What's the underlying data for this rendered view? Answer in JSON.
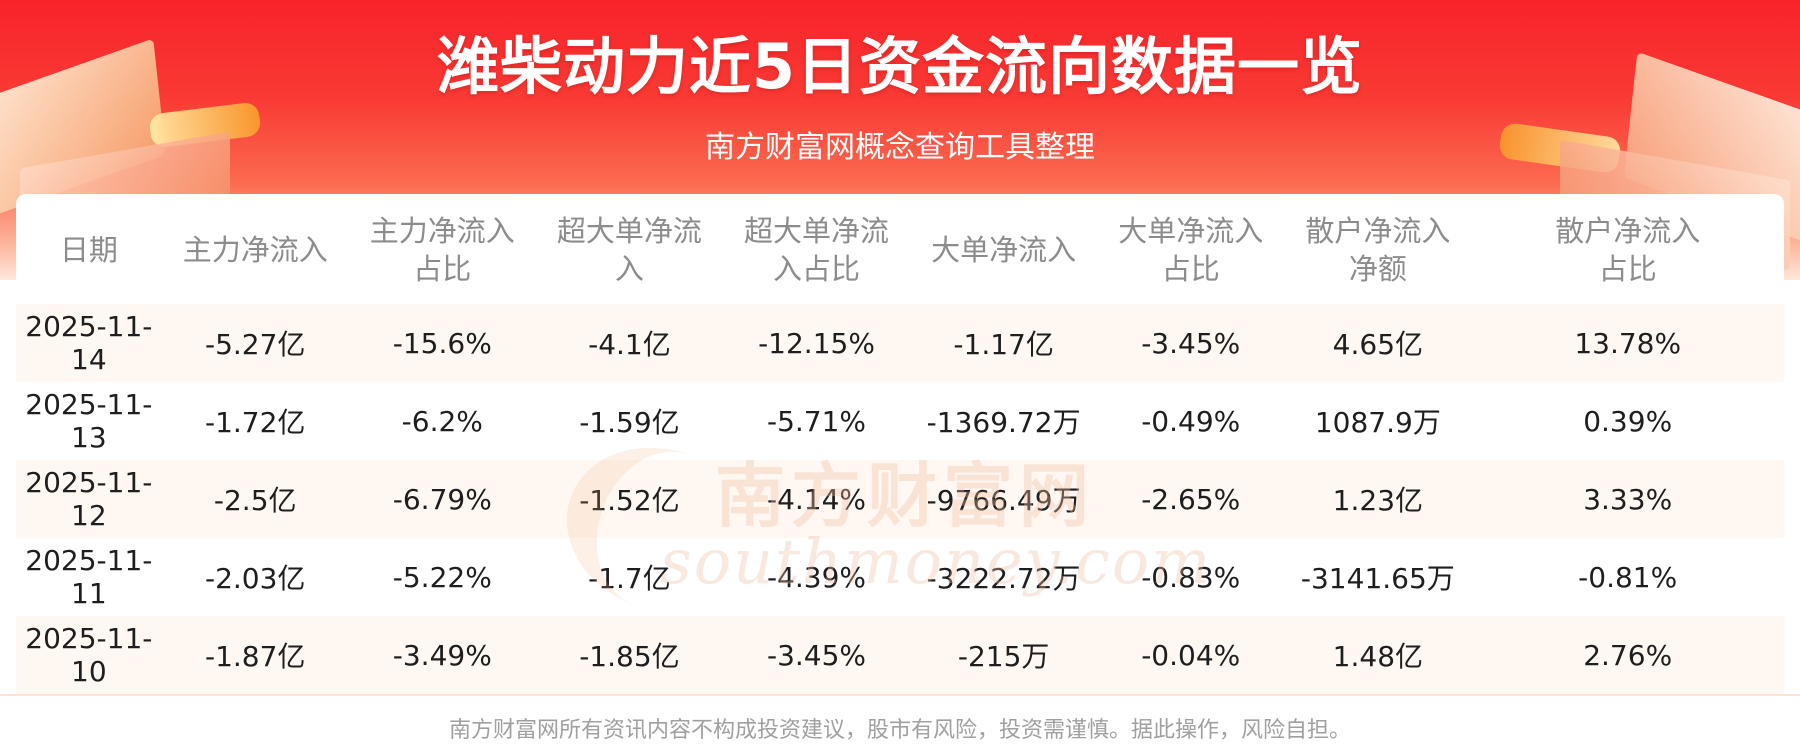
{
  "header": {
    "title": "潍柴动力近5日资金流向数据一览",
    "subtitle": "南方财富网概念查询工具整理"
  },
  "table": {
    "columns": [
      {
        "line1": "日期",
        "line2": ""
      },
      {
        "line1": "主力净流入",
        "line2": ""
      },
      {
        "line1": "主力净流入",
        "line2": "占比"
      },
      {
        "line1": "超大单净流",
        "line2": "入"
      },
      {
        "line1": "超大单净流",
        "line2": "入占比"
      },
      {
        "line1": "大单净流入",
        "line2": ""
      },
      {
        "line1": "大单净流入",
        "line2": "占比"
      },
      {
        "line1": "散户净流入",
        "line2": "净额"
      },
      {
        "line1": "散户净流入",
        "line2": "占比"
      }
    ],
    "rows": [
      [
        "2025-11-14",
        "-5.27亿",
        "-15.6%",
        "-4.1亿",
        "-12.15%",
        "-1.17亿",
        "-3.45%",
        "4.65亿",
        "13.78%"
      ],
      [
        "2025-11-13",
        "-1.72亿",
        "-6.2%",
        "-1.59亿",
        "-5.71%",
        "-1369.72万",
        "-0.49%",
        "1087.9万",
        "0.39%"
      ],
      [
        "2025-11-12",
        "-2.5亿",
        "-6.79%",
        "-1.52亿",
        "-4.14%",
        "-9766.49万",
        "-2.65%",
        "1.23亿",
        "3.33%"
      ],
      [
        "2025-11-11",
        "-2.03亿",
        "-5.22%",
        "-1.7亿",
        "-4.39%",
        "-3222.72万",
        "-0.83%",
        "-3141.65万",
        "-0.81%"
      ],
      [
        "2025-11-10",
        "-1.87亿",
        "-3.49%",
        "-1.85亿",
        "-3.45%",
        "-215万",
        "-0.04%",
        "1.48亿",
        "2.76%"
      ]
    ]
  },
  "watermark": {
    "chinese": "南方财富网",
    "english": "southmoney.com"
  },
  "footer": {
    "disclaimer": "南方财富网所有资讯内容不构成投资建议，股市有风险，投资需谨慎。据此操作，风险自担。"
  },
  "colors": {
    "banner_red": "#f8232a",
    "header_text": "#8c8c8c",
    "row_stripe": "#fff8f2",
    "cell_text": "#1e1e1e"
  }
}
